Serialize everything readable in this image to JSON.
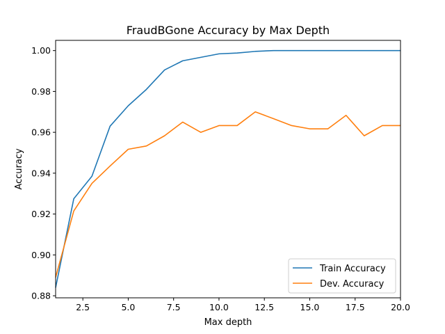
{
  "chart_data": {
    "type": "line",
    "title": "FraudBGone Accuracy by Max Depth",
    "xlabel": "Max depth",
    "ylabel": "Accuracy",
    "xlim": [
      1,
      20
    ],
    "ylim": [
      0.879,
      1.005
    ],
    "xticks": [
      2.5,
      5.0,
      7.5,
      10.0,
      12.5,
      15.0,
      17.5,
      20.0
    ],
    "xtick_labels": [
      "2.5",
      "5.0",
      "7.5",
      "10.0",
      "12.5",
      "15.0",
      "17.5",
      "20.0"
    ],
    "yticks": [
      0.88,
      0.9,
      0.92,
      0.94,
      0.96,
      0.98,
      1.0
    ],
    "ytick_labels": [
      "0.88",
      "0.90",
      "0.92",
      "0.94",
      "0.96",
      "0.98",
      "1.00"
    ],
    "grid": false,
    "legend_position": "bottom-right",
    "x": [
      1,
      2,
      3,
      4,
      5,
      6,
      7,
      8,
      9,
      10,
      11,
      12,
      13,
      14,
      15,
      16,
      17,
      18,
      19,
      20
    ],
    "series": [
      {
        "name": "Train Accuracy",
        "color": "#1f77b4",
        "values": [
          0.884,
          0.9275,
          0.9385,
          0.963,
          0.973,
          0.981,
          0.9905,
          0.995,
          0.9967,
          0.9984,
          0.9988,
          0.9996,
          1.0,
          1.0,
          1.0,
          1.0,
          1.0,
          1.0,
          1.0,
          1.0
        ]
      },
      {
        "name": "Dev. Accuracy",
        "color": "#ff7f0e",
        "values": [
          0.889,
          0.9215,
          0.935,
          0.9435,
          0.9517,
          0.9533,
          0.9583,
          0.965,
          0.96,
          0.9633,
          0.9633,
          0.97,
          0.9667,
          0.9633,
          0.9617,
          0.9617,
          0.9683,
          0.9583,
          0.9633,
          0.9633
        ]
      }
    ]
  }
}
